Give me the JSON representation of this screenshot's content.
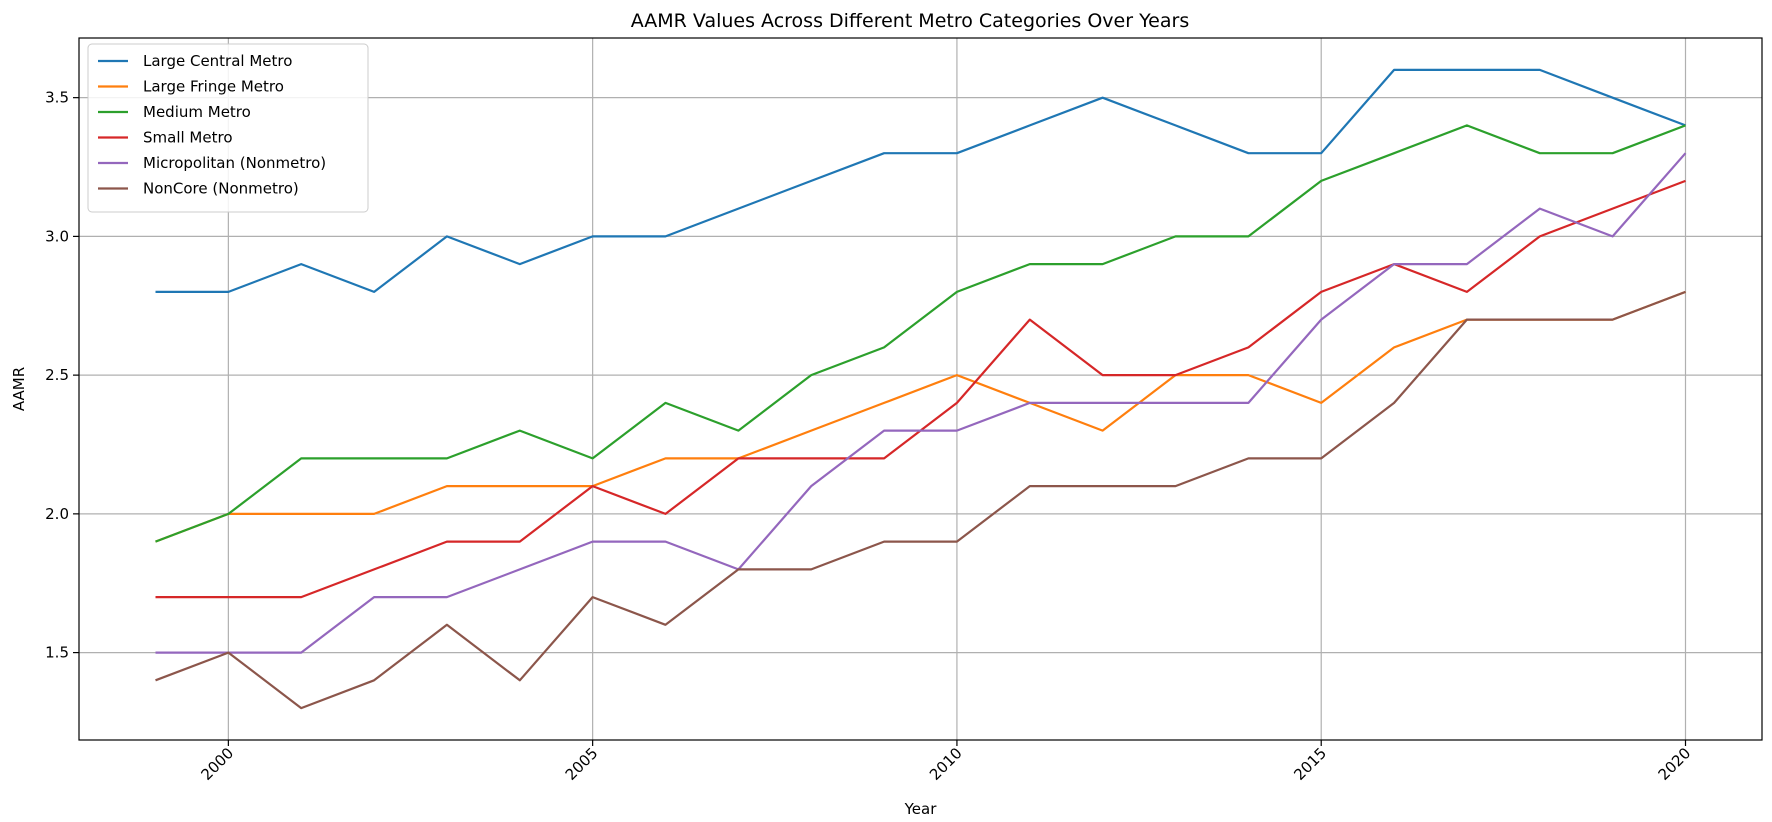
{
  "chart_data": {
    "type": "line",
    "title": "AAMR Values Across Different Metro Categories Over Years",
    "xlabel": "Year",
    "ylabel": "AAMR",
    "x": [
      1999,
      2000,
      2001,
      2002,
      2003,
      2004,
      2005,
      2006,
      2007,
      2008,
      2009,
      2010,
      2011,
      2012,
      2013,
      2014,
      2015,
      2016,
      2017,
      2018,
      2019,
      2020
    ],
    "xlim": [
      1997.95,
      2021.05
    ],
    "ylim": [
      1.185,
      3.715
    ],
    "x_ticks": [
      2000,
      2005,
      2010,
      2015,
      2020
    ],
    "x_tick_labels": [
      "2000",
      "2005",
      "2010",
      "2015",
      "2020"
    ],
    "y_ticks": [
      1.5,
      2.0,
      2.5,
      3.0,
      3.5
    ],
    "y_tick_labels": [
      "1.5",
      "2.0",
      "2.5",
      "3.0",
      "3.5"
    ],
    "x_tick_rotation": 45,
    "grid": true,
    "legend_position": "top-left",
    "series": [
      {
        "name": "Large Central Metro",
        "color": "#1f77b4",
        "values": [
          2.8,
          2.8,
          2.9,
          2.8,
          3.0,
          2.9,
          3.0,
          3.0,
          3.1,
          3.2,
          3.3,
          3.3,
          3.4,
          3.5,
          3.4,
          3.3,
          3.3,
          3.6,
          3.6,
          3.6,
          3.5,
          3.4
        ]
      },
      {
        "name": "Large Fringe Metro",
        "color": "#ff7f0e",
        "values": [
          1.9,
          2.0,
          2.0,
          2.0,
          2.1,
          2.1,
          2.1,
          2.2,
          2.2,
          2.3,
          2.4,
          2.5,
          2.4,
          2.3,
          2.5,
          2.5,
          2.4,
          2.6,
          2.7,
          2.7,
          2.7,
          2.8
        ]
      },
      {
        "name": "Medium Metro",
        "color": "#2ca02c",
        "values": [
          1.9,
          2.0,
          2.2,
          2.2,
          2.2,
          2.3,
          2.2,
          2.4,
          2.3,
          2.5,
          2.6,
          2.8,
          2.9,
          2.9,
          3.0,
          3.0,
          3.2,
          3.3,
          3.4,
          3.3,
          3.3,
          3.4
        ]
      },
      {
        "name": "Small Metro",
        "color": "#d62728",
        "values": [
          1.7,
          1.7,
          1.7,
          1.8,
          1.9,
          1.9,
          2.1,
          2.0,
          2.2,
          2.2,
          2.2,
          2.4,
          2.7,
          2.5,
          2.5,
          2.6,
          2.8,
          2.9,
          2.8,
          3.0,
          3.1,
          3.2
        ]
      },
      {
        "name": "Micropolitan (Nonmetro)",
        "color": "#9467bd",
        "values": [
          1.5,
          1.5,
          1.5,
          1.7,
          1.7,
          1.8,
          1.9,
          1.9,
          1.8,
          2.1,
          2.3,
          2.3,
          2.4,
          2.4,
          2.4,
          2.4,
          2.7,
          2.9,
          2.9,
          3.1,
          3.0,
          3.3
        ]
      },
      {
        "name": "NonCore (Nonmetro)",
        "color": "#8c564b",
        "values": [
          1.4,
          1.5,
          1.3,
          1.4,
          1.6,
          1.4,
          1.7,
          1.6,
          1.8,
          1.8,
          1.9,
          1.9,
          2.1,
          2.1,
          2.1,
          2.2,
          2.2,
          2.4,
          2.7,
          2.7,
          2.7,
          2.8
        ]
      }
    ]
  }
}
